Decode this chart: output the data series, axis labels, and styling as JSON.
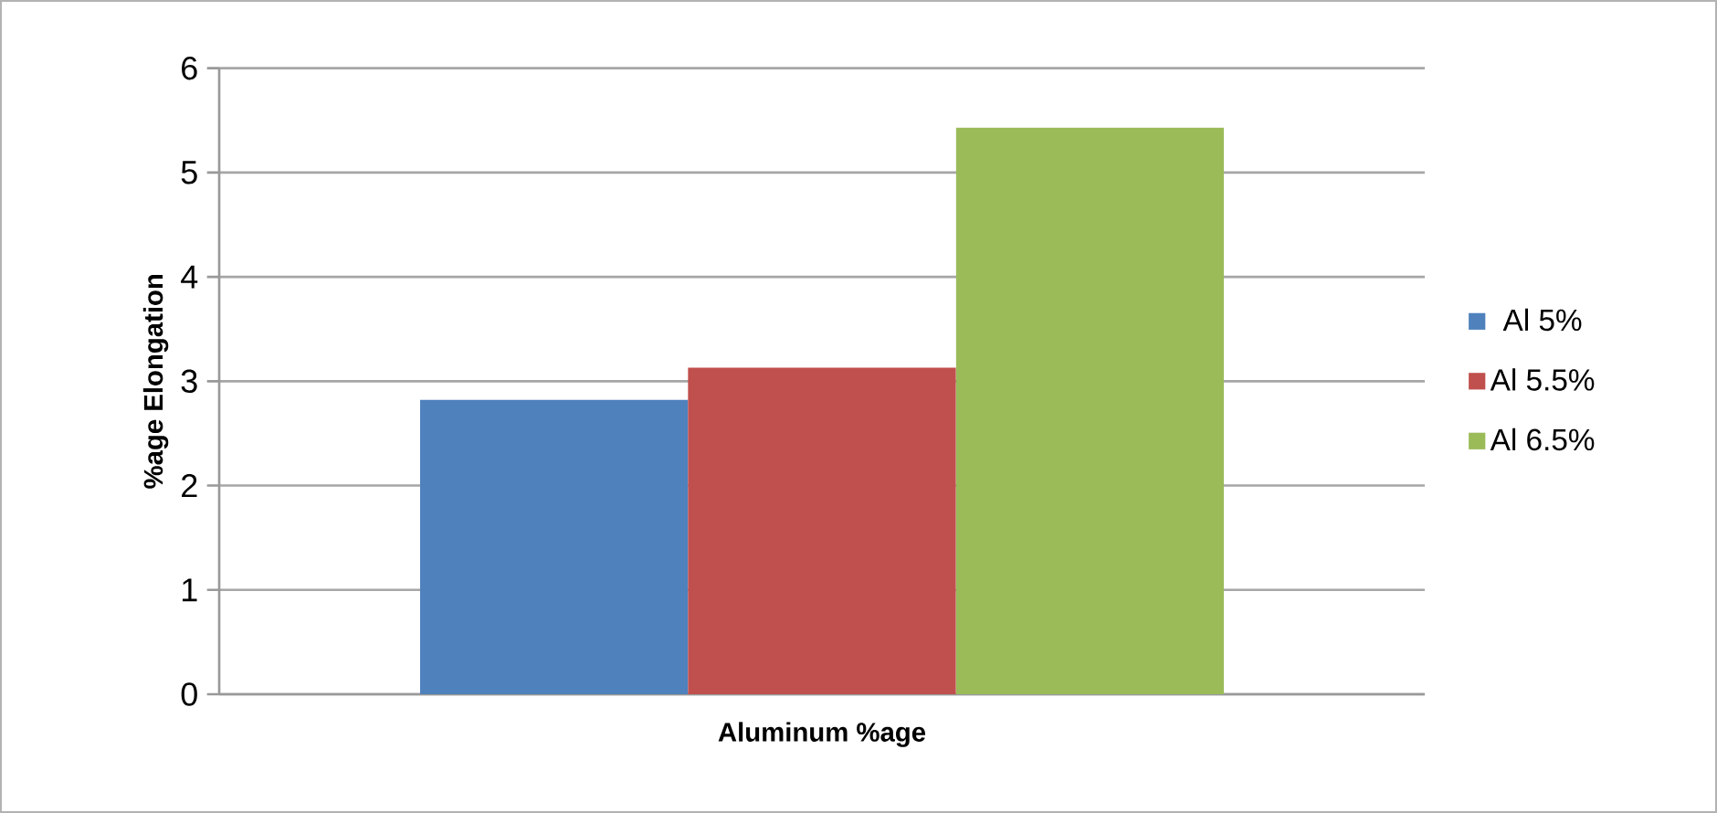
{
  "chart_data": {
    "type": "bar",
    "xlabel": "Aluminum %age",
    "ylabel": "%age Elongation",
    "categories": [
      null
    ],
    "series": [
      {
        "name": "Al 5%",
        "color": "#4f81bd",
        "values": [
          2.82
        ]
      },
      {
        "name": "Al 5.5%",
        "color": "#c0504d",
        "values": [
          3.13
        ]
      },
      {
        "name": "Al 6.5%",
        "color": "#9bbb59",
        "values": [
          5.43
        ]
      }
    ],
    "ylim": [
      0,
      6
    ],
    "yticks": [
      0,
      1,
      2,
      3,
      4,
      5,
      6
    ],
    "grid": "y",
    "legend": "right"
  }
}
